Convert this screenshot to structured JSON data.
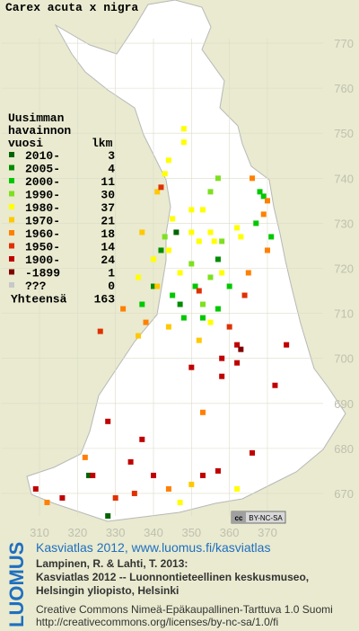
{
  "chart_data": {
    "type": "gridmap",
    "title": "Carex acuta x nigra",
    "legend_title_lines": [
      "Uusimman",
      "havainnon",
      "vuosi"
    ],
    "count_header": "lkm",
    "total_label": "Yhteensä",
    "total": 163,
    "xlim": [
      300,
      380
    ],
    "xticks": [
      310,
      320,
      330,
      340,
      350,
      360,
      370
    ],
    "ylim": [
      665,
      775
    ],
    "yticks": [
      670,
      680,
      690,
      700,
      710,
      720,
      730,
      740,
      750,
      760,
      770
    ],
    "grid": true,
    "series": [
      {
        "name": "2010-",
        "count": 3,
        "color": "#006400",
        "x": [
          346,
          323,
          328
        ],
        "y": [
          728,
          674,
          665
        ]
      },
      {
        "name": "2005-",
        "count": 4,
        "color": "#008c00",
        "x": [
          342,
          340,
          347,
          357
        ],
        "y": [
          724,
          716,
          712,
          722
        ]
      },
      {
        "name": "2000-",
        "count": 11,
        "color": "#00c800",
        "x": [
          368,
          369,
          371,
          351,
          348,
          353,
          345,
          357,
          360,
          337,
          367
        ],
        "y": [
          737,
          736,
          727,
          716,
          709,
          709,
          714,
          711,
          716,
          712,
          730
        ]
      },
      {
        "name": "1990-",
        "count": 30,
        "color": "#7ee020",
        "x": [
          357,
          355,
          355,
          350,
          343,
          358,
          353
        ],
        "y": [
          740,
          737,
          718,
          721,
          727,
          726,
          712
        ]
      },
      {
        "name": "1980-",
        "count": 37,
        "color": "#ffff00",
        "x": [
          348,
          348,
          344,
          343,
          353,
          350,
          345,
          350,
          355,
          362,
          363,
          344,
          352,
          356,
          340,
          347,
          358,
          336,
          362,
          347,
          355
        ],
        "y": [
          751,
          748,
          744,
          741,
          733,
          733,
          731,
          728,
          728,
          729,
          727,
          724,
          726,
          726,
          722,
          719,
          719,
          718,
          671,
          668,
          708
        ]
      },
      {
        "name": "1970-",
        "count": 21,
        "color": "#ffc800",
        "x": [
          341,
          337,
          341,
          344,
          352,
          336,
          350
        ],
        "y": [
          737,
          728,
          716,
          707,
          704,
          705,
          672
        ]
      },
      {
        "name": "1960-",
        "count": 18,
        "color": "#ff8000",
        "x": [
          366,
          370,
          369,
          370,
          353,
          344,
          322,
          312,
          332,
          338,
          365
        ],
        "y": [
          740,
          735,
          732,
          724,
          688,
          671,
          678,
          668,
          711,
          708,
          719
        ]
      },
      {
        "name": "1950-",
        "count": 14,
        "color": "#e03000",
        "x": [
          342,
          352,
          364,
          326,
          360,
          330,
          335
        ],
        "y": [
          738,
          715,
          714,
          706,
          707,
          669,
          670
        ]
      },
      {
        "name": "1900-",
        "count": 24,
        "color": "#c00000",
        "x": [
          375,
          362,
          362,
          358,
          328,
          337,
          334,
          324,
          309,
          340,
          353,
          357,
          366,
          372,
          316,
          350,
          358
        ],
        "y": [
          703,
          699,
          703,
          700,
          686,
          682,
          677,
          674,
          671,
          674,
          674,
          675,
          679,
          694,
          669,
          698,
          696
        ]
      },
      {
        "name": "-1899",
        "count": 1,
        "color": "#800000",
        "x": [
          363
        ],
        "y": [
          702
        ]
      },
      {
        "name": "???",
        "count": 0,
        "color": "#c8c8c8",
        "x": [],
        "y": []
      }
    ]
  },
  "license_badge": {
    "cc": "cc",
    "text": "BY-NC-SA"
  },
  "footer": {
    "logo": "LUOMUS",
    "link": "Kasviatlas 2012, www.luomus.fi/kasviatlas",
    "citation": [
      "Lampinen, R. & Lahti, T. 2013:",
      "Kasviatlas 2012 -- Luonnontieteellinen keskusmuseo,",
      "Helsingin yliopisto, Helsinki"
    ],
    "license": [
      "Creative Commons Nimeä-Epäkaupallinen-Tarttuva 1.0 Suomi",
      "http://creativecommons.org/licenses/by-nc-sa/1.0/fi"
    ]
  }
}
